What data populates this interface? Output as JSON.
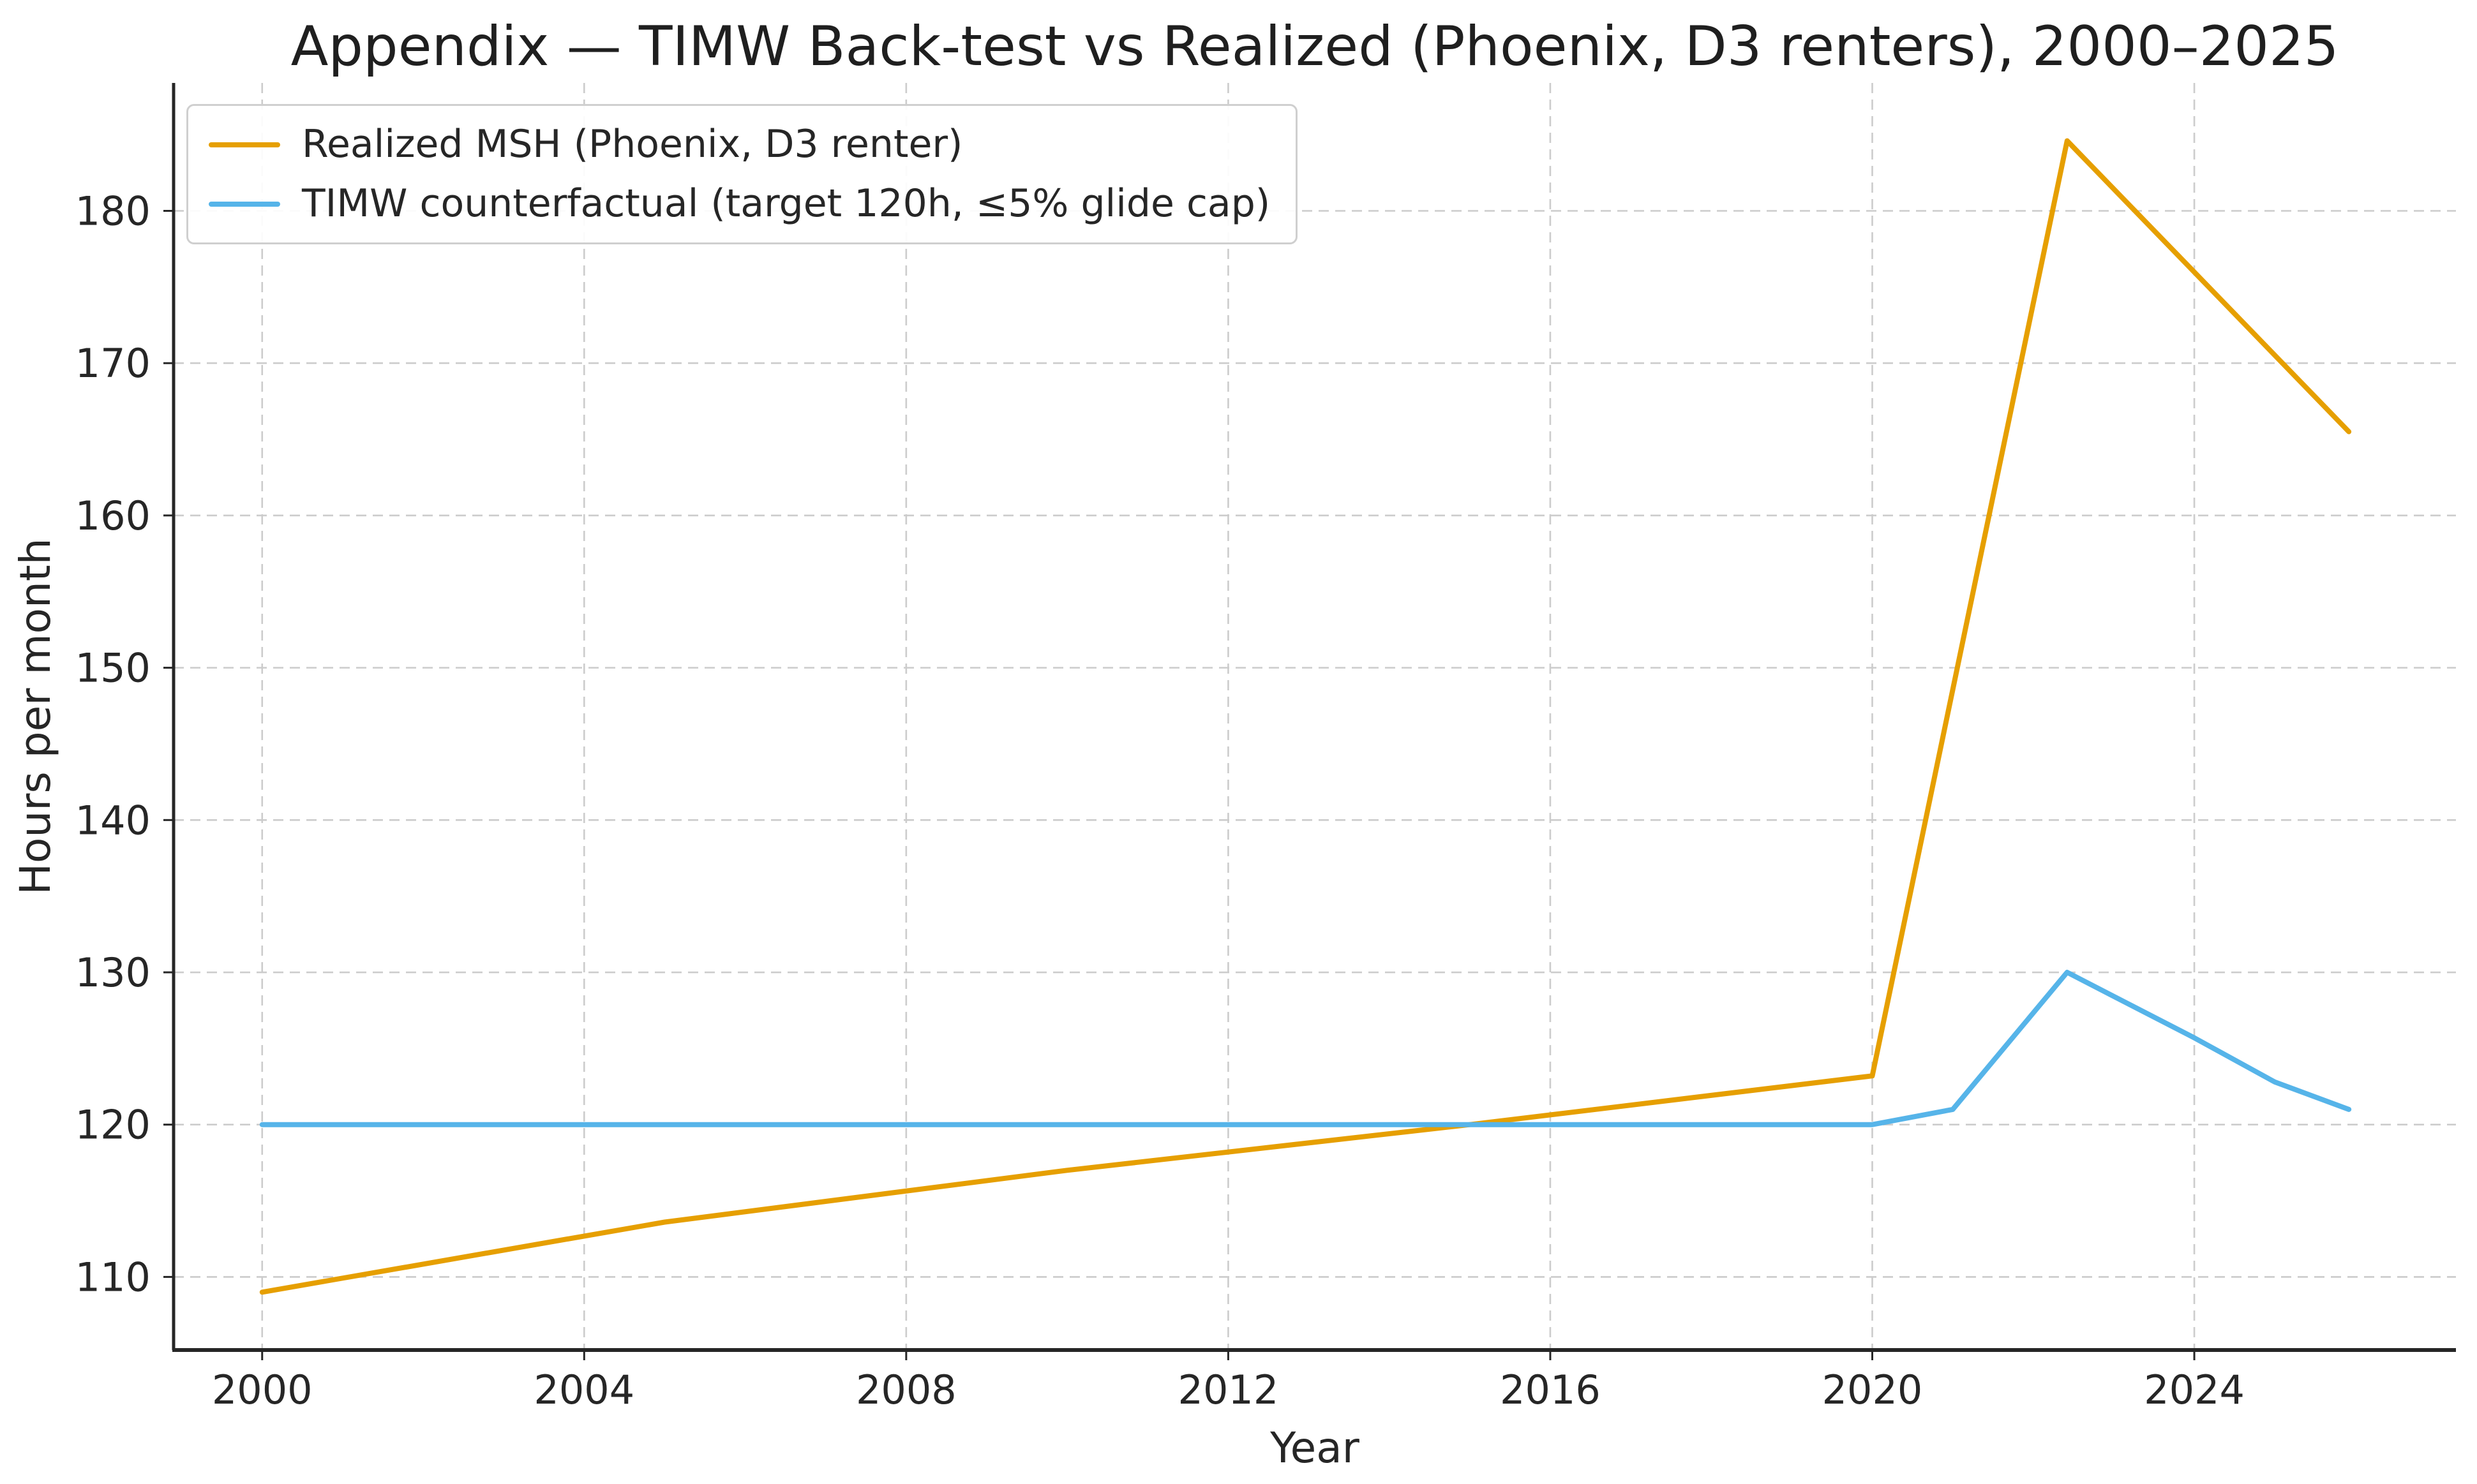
{
  "chart_data": {
    "type": "line",
    "title": "Appendix — TIMW Back-test vs Realized (Phoenix, D3 renters), 2000–2025",
    "xlabel": "Year",
    "ylabel": "Hours per month",
    "xlim": [
      1998.9,
      2027.25
    ],
    "ylim": [
      105.2,
      188.4
    ],
    "xticks": [
      2000,
      2004,
      2008,
      2012,
      2016,
      2020,
      2024
    ],
    "yticks": [
      110,
      120,
      130,
      140,
      150,
      160,
      170,
      180
    ],
    "grid": true,
    "grid_style": "dashed",
    "legend_position": "upper-left",
    "colors": {
      "realized": "#E69F00",
      "timw": "#56B4E9",
      "grid": "#cccccc",
      "spine": "#262626",
      "text": "#262626"
    },
    "series": [
      {
        "name": "Realized MSH (Phoenix, D3 renter)",
        "color": "#E69F00",
        "points": [
          [
            2000,
            109
          ],
          [
            2005,
            113.6
          ],
          [
            2010,
            117
          ],
          [
            2015,
            120
          ],
          [
            2020,
            123.2
          ],
          [
            2022.42,
            184.6
          ],
          [
            2025.92,
            165.5
          ]
        ]
      },
      {
        "name": "TIMW counterfactual (target 120h, ≤5% glide cap)",
        "color": "#56B4E9",
        "points": [
          [
            2000,
            120
          ],
          [
            2020,
            120
          ],
          [
            2021,
            121
          ],
          [
            2022.42,
            130
          ],
          [
            2024,
            125.7
          ],
          [
            2025,
            122.8
          ],
          [
            2025.92,
            121
          ]
        ]
      }
    ]
  }
}
